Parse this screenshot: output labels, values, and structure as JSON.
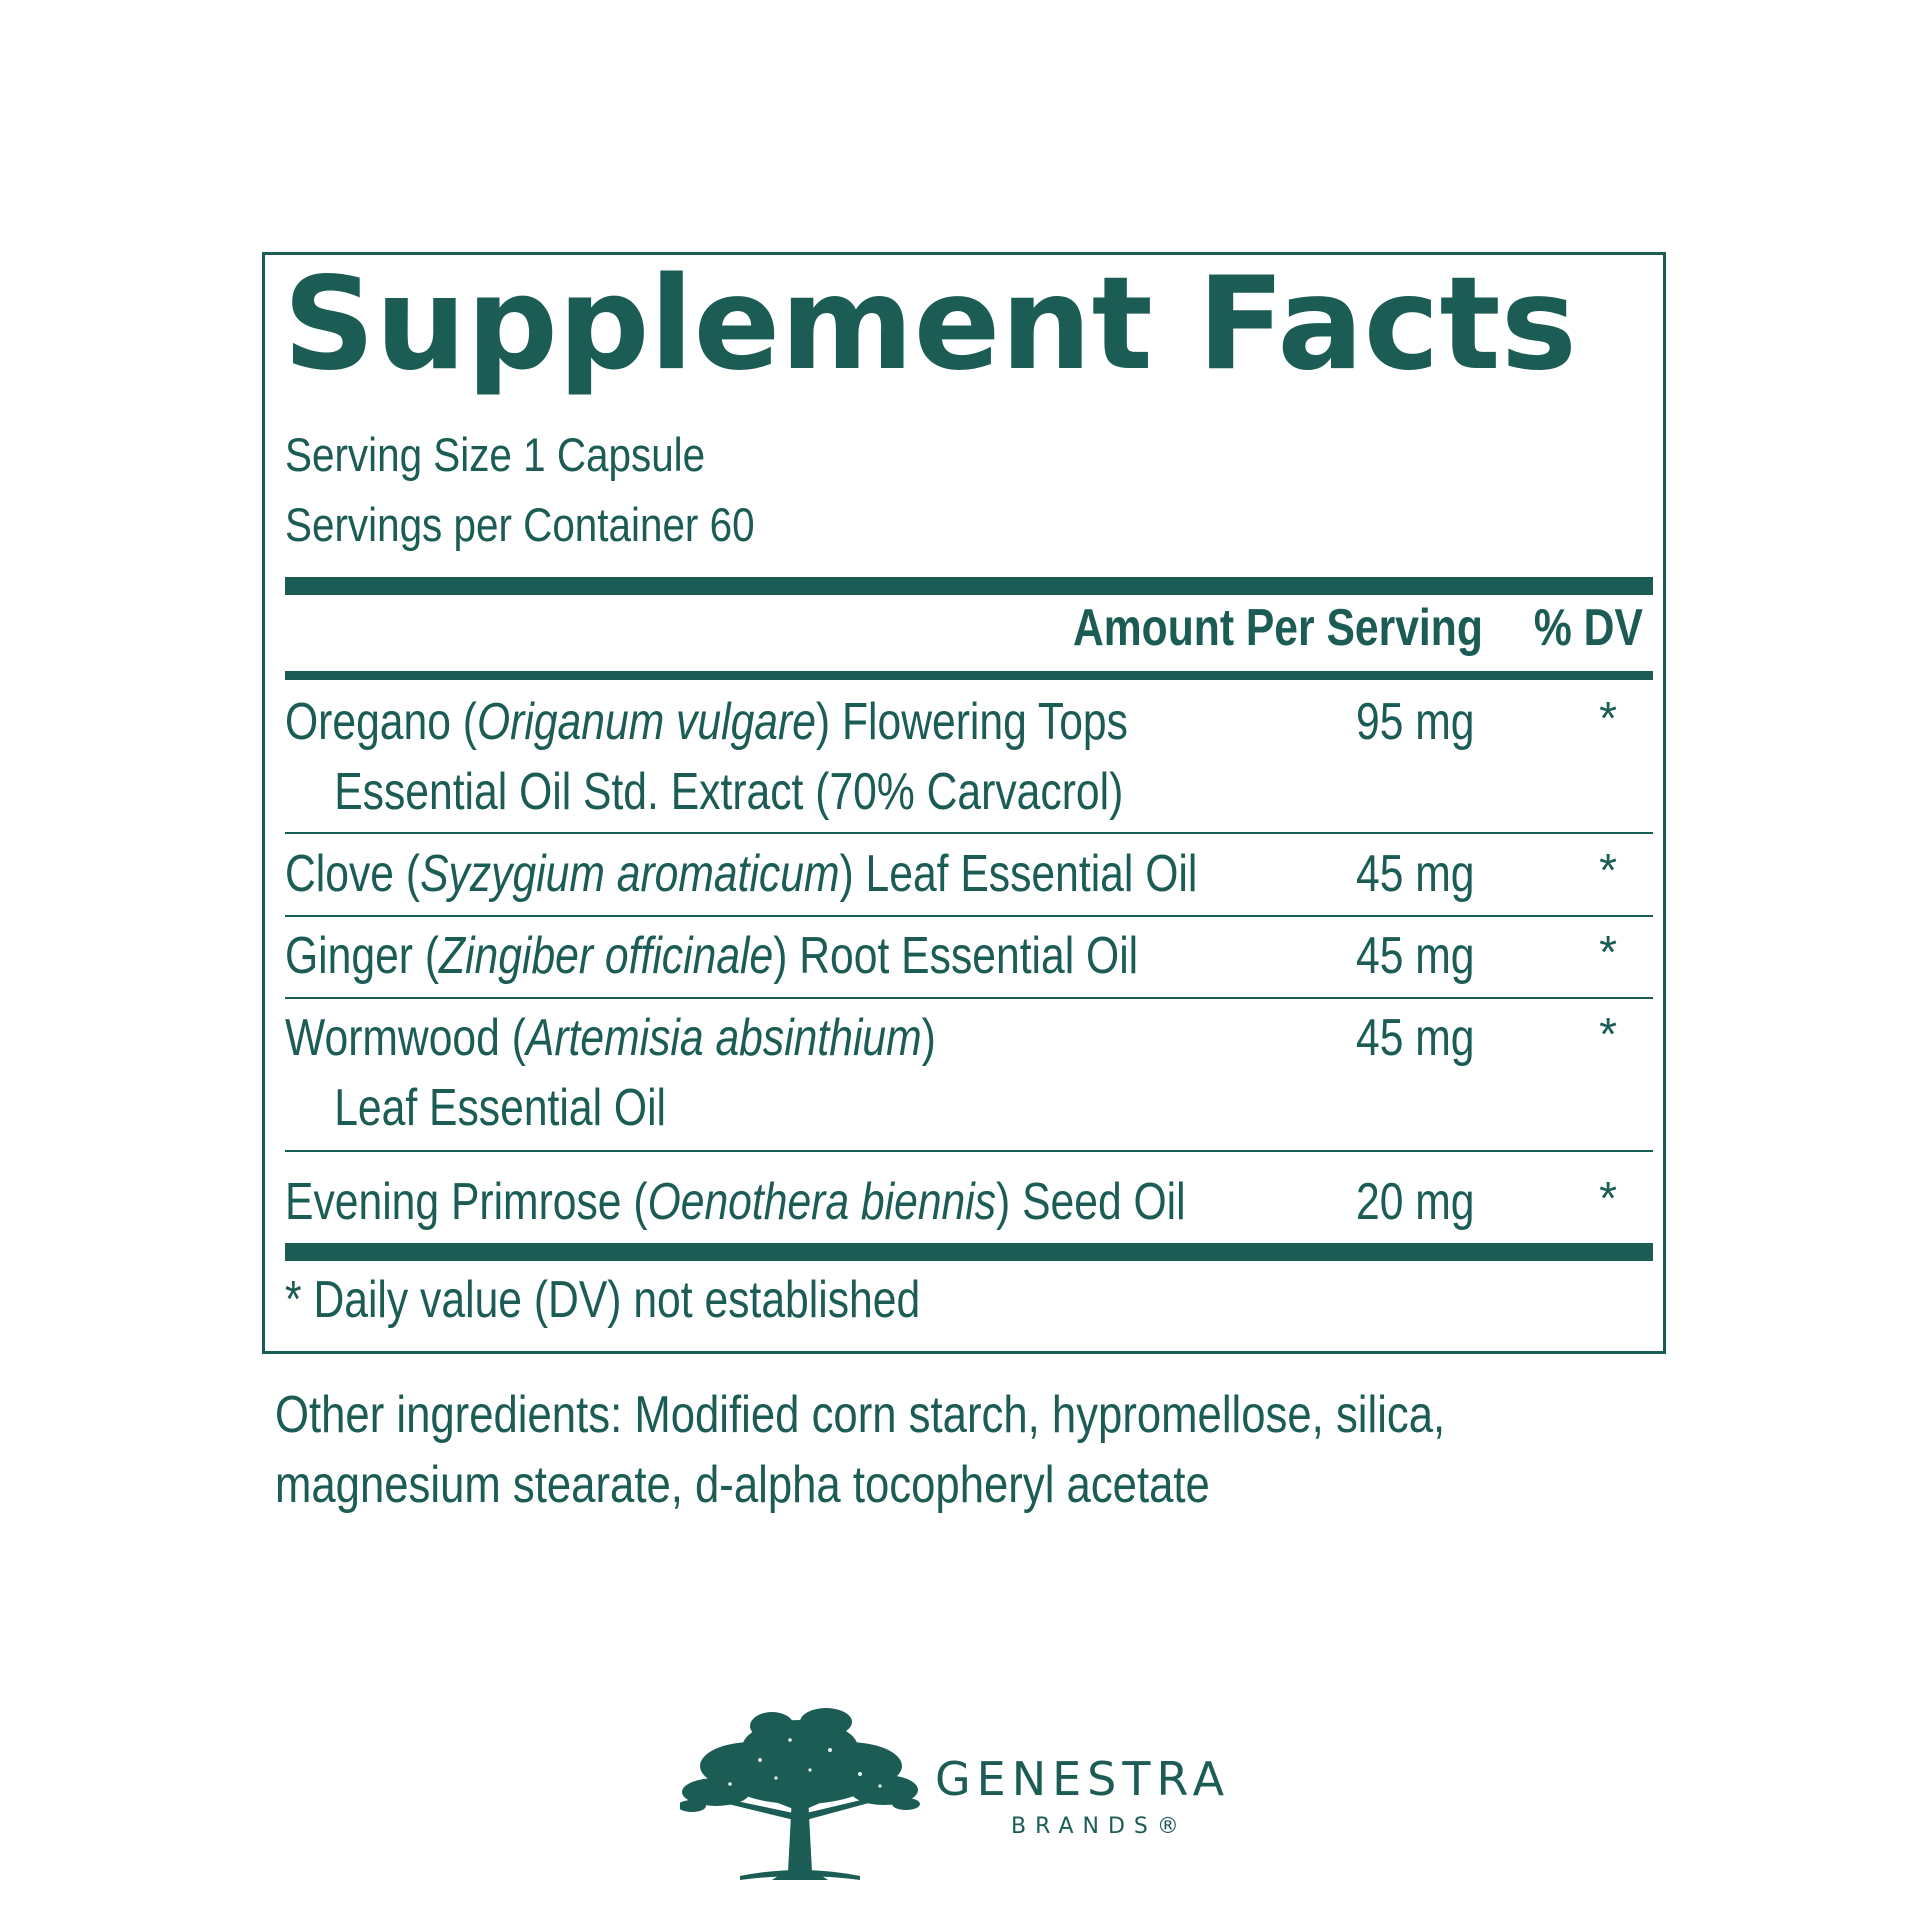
{
  "panel": {
    "title": "Supplement Facts",
    "serving_size": "Serving Size 1 Capsule",
    "servings_per_container": "Servings per Container 60",
    "header_amount": "Amount Per Serving",
    "header_dv": "% DV",
    "rows": [
      {
        "name_plain_1": "Oregano (",
        "name_italic": "Origanum vulgare",
        "name_plain_2": ") Flowering Tops",
        "line2": "Essential Oil Std. Extract (70% Carvacrol)",
        "amount": "95 mg",
        "dv": "*"
      },
      {
        "name_plain_1": "Clove (",
        "name_italic": "Syzygium aromaticum",
        "name_plain_2": ") Leaf Essential Oil",
        "amount": "45 mg",
        "dv": "*"
      },
      {
        "name_plain_1": "Ginger (",
        "name_italic": "Zingiber officinale",
        "name_plain_2": ") Root Essential Oil",
        "amount": "45 mg",
        "dv": "*"
      },
      {
        "name_plain_1": "Wormwood (",
        "name_italic": "Artemisia absinthium",
        "name_plain_2": ")",
        "line2": "Leaf Essential Oil",
        "amount": "45 mg",
        "dv": "*"
      },
      {
        "name_plain_1": "Evening Primrose (",
        "name_italic": "Oenothera biennis",
        "name_plain_2": ") Seed Oil",
        "amount": "20 mg",
        "dv": "*"
      }
    ],
    "footnote": "* Daily value (DV) not established"
  },
  "other_ingredients": {
    "line1": "Other ingredients: Modified corn starch, hypromellose, silica,",
    "line2": "magnesium stearate, d-alpha tocopheryl acetate"
  },
  "brand": {
    "logo_icon": "tree-icon",
    "name": "GENESTRA",
    "subname": "BRANDS®"
  },
  "colors": {
    "ink": "#1b5c55",
    "background": "#ffffff"
  }
}
